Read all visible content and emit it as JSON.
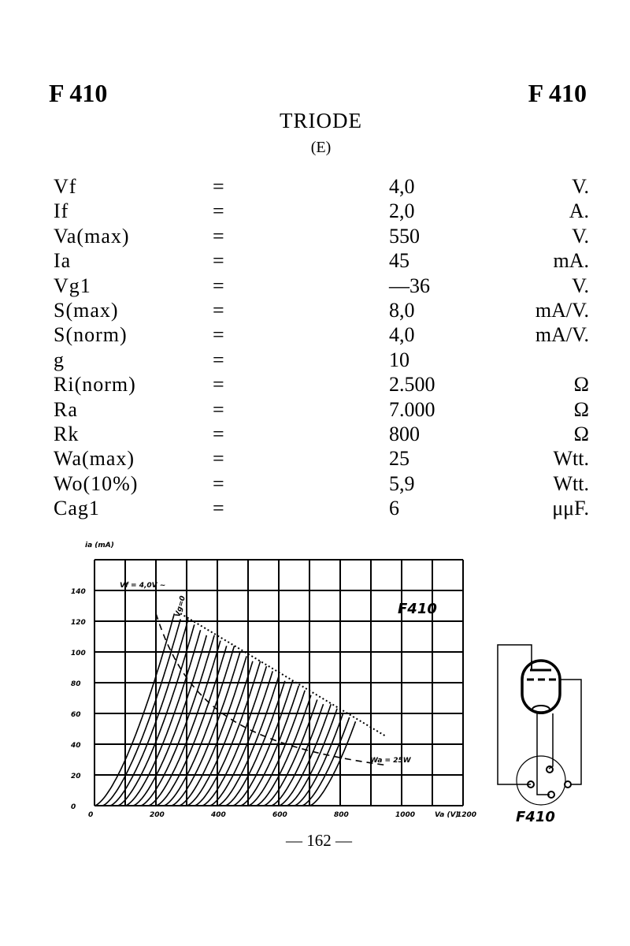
{
  "header": {
    "code_left": "F 410",
    "code_right": "F 410",
    "title": "TRIODE",
    "subtitle": "(E)"
  },
  "specs": [
    {
      "param": "Vf",
      "eq": "=",
      "value": "4,0",
      "unit": "V."
    },
    {
      "param": "If",
      "eq": "=",
      "value": "2,0",
      "unit": "A."
    },
    {
      "param": "Va(max)",
      "eq": "=",
      "value": "550",
      "unit": "V."
    },
    {
      "param": "Ia",
      "eq": "=",
      "value": "45",
      "unit": "mA."
    },
    {
      "param": "Vg1",
      "eq": "=",
      "value": "—36",
      "unit": "V."
    },
    {
      "param": "S(max)",
      "eq": "=",
      "value": "8,0",
      "unit": "mA/V."
    },
    {
      "param": "S(norm)",
      "eq": "=",
      "value": "4,0",
      "unit": "mA/V."
    },
    {
      "param": "g",
      "eq": "=",
      "value": "10",
      "unit": ""
    },
    {
      "param": "Ri(norm)",
      "eq": "=",
      "value": "2.500",
      "unit": "Ω"
    },
    {
      "param": "Ra",
      "eq": "=",
      "value": "7.000",
      "unit": "Ω"
    },
    {
      "param": "Rk",
      "eq": "=",
      "value": "800",
      "unit": "Ω"
    },
    {
      "param": "Wa(max)",
      "eq": "=",
      "value": "25",
      "unit": "Wtt."
    },
    {
      "param": "Wo(10%)",
      "eq": "=",
      "value": "5,9",
      "unit": "Wtt."
    },
    {
      "param": "Cag1",
      "eq": "=",
      "value": "6",
      "unit": "μμF."
    }
  ],
  "figure": {
    "ylabel": "ia (mA)",
    "xlabel": "Va (V)",
    "y_ticks": [
      "0",
      "20",
      "40",
      "60",
      "80",
      "100",
      "120",
      "140"
    ],
    "x_ticks": [
      "0",
      "200",
      "400",
      "600",
      "800",
      "1000",
      "1200"
    ],
    "annotation_vf": "Vf = 4,0V ~",
    "annotation_vg": "Vg=0",
    "annotation_wa": "Wa = 25W",
    "label": "F410",
    "xlim": [
      0,
      1200
    ],
    "ylim": [
      0,
      160
    ]
  },
  "diagram": {
    "label": "F410"
  },
  "footer": {
    "page_number": "— 162 —"
  }
}
